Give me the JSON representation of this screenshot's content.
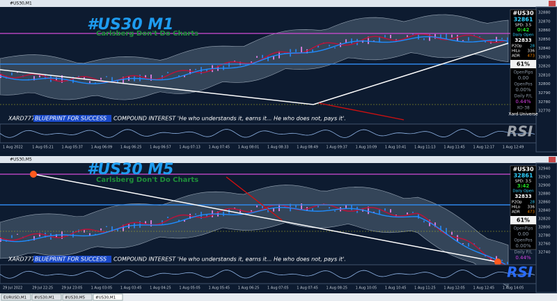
{
  "windows": [
    {
      "window_title": "#US30,M1",
      "chart_title": "#US30 M1",
      "subtitle": "Carlsberg Don't Do Charts",
      "info": {
        "symbol": "#US30",
        "price": "32861",
        "spread": "SPD: 3.5",
        "timer": "0:42",
        "daily_open_label": "Daily Open",
        "daily_open": "32833",
        "p2op_label": "P2Op",
        "p2op": "28",
        "hilo_label": "HiLo",
        "hilo": "336",
        "adr_label": "ADR",
        "adr": "473",
        "percent": "61%",
        "open_pips_label": "OpenPips",
        "open_pips": "0.00",
        "open_pos_label": "OpenPos",
        "open_pos": "0.00%",
        "daily_pl_label": "Daily P/L",
        "daily_pl": "0.44%",
        "code": "XO-38",
        "brand": "Xard Universe"
      },
      "footer": {
        "author": "XARD777",
        "tagline": "BLUEPRINT FOR SUCCESS",
        "quote": "COMPOUND INTEREST 'He who understands it, earns it... He who does not, pays it'."
      },
      "rsi_label": "RSI",
      "price_labels": [
        "32880",
        "32870",
        "32860",
        "32850",
        "32840",
        "32830",
        "32820",
        "32810",
        "32800",
        "32790",
        "32780",
        "32770"
      ],
      "time_labels": [
        "1 Aug 2022",
        "1 Aug 05:21",
        "1 Aug 05:37",
        "1 Aug 06:09",
        "1 Aug 06:25",
        "1 Aug 06:57",
        "1 Aug 07:13",
        "1 Aug 07:45",
        "1 Aug 08:01",
        "1 Aug 08:33",
        "1 Aug 08:49",
        "1 Aug 09:37",
        "1 Aug 10:09",
        "1 Aug 10:41",
        "1 Aug 11:13",
        "1 Aug 11:45",
        "1 Aug 12:17",
        "1 Aug 12:49"
      ]
    },
    {
      "window_title": "#US30,M5",
      "chart_title": "#US30 M5",
      "subtitle": "Carlsberg Don't Do Charts",
      "info": {
        "symbol": "#US30",
        "price": "32861",
        "spread": "SPD: 3.5",
        "timer": "3:42",
        "daily_open_label": "Daily Open",
        "daily_open": "32833",
        "p2op_label": "P2Op",
        "p2op": "28",
        "hilo_label": "HiLo",
        "hilo": "336",
        "adr_label": "ADR",
        "adr": "473",
        "percent": "61%",
        "open_pips_label": "OpenPips",
        "open_pips": "0.00",
        "open_pos_label": "OpenPos",
        "open_pos": "0.00%",
        "daily_pl_label": "Daily P/L",
        "daily_pl": "0.44%"
      },
      "footer": {
        "author": "XARD777",
        "tagline": "BLUEPRINT FOR SUCCESS",
        "quote": "COMPOUND INTEREST 'He who understands it, earns it... He who does not, pays it'."
      },
      "rsi_label": "RSI",
      "price_labels": [
        "32940",
        "32920",
        "32900",
        "32880",
        "32860",
        "32840",
        "32820",
        "32800",
        "32780",
        "32760",
        "32740"
      ],
      "time_labels": [
        "29 Jul 2022",
        "29 Jul 22:25",
        "29 Jul 23:05",
        "1 Aug 03:05",
        "1 Aug 03:45",
        "1 Aug 04:25",
        "1 Aug 05:05",
        "1 Aug 05:45",
        "1 Aug 06:25",
        "1 Aug 07:05",
        "1 Aug 07:45",
        "1 Aug 08:25",
        "1 Aug 10:05",
        "1 Aug 10:45",
        "1 Aug 11:25",
        "1 Aug 12:05",
        "1 Aug 12:45",
        "1 Aug 14:05"
      ]
    }
  ],
  "tabs": [
    "EURUSD,M1",
    "#US30,M1",
    "#US30,M5",
    "#US30,M1"
  ]
}
